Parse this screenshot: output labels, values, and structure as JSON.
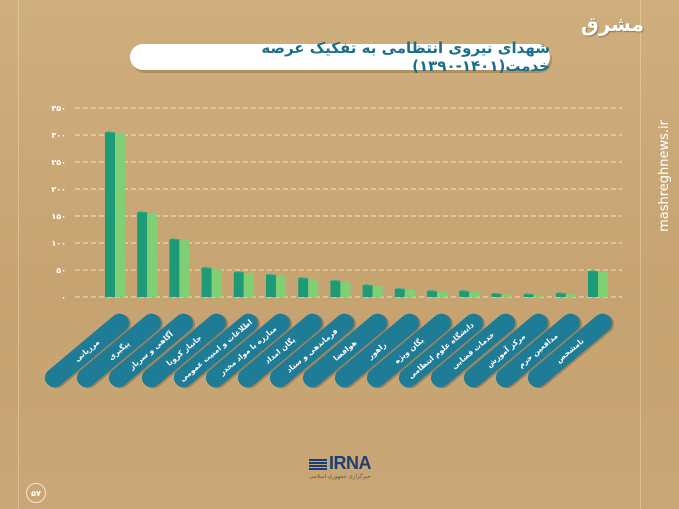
{
  "header": {
    "title": "شهدای نیروی انتظامی به تفکیک عرصه خدمت(۱۴۰۱-۱۳۹۰)"
  },
  "branding": {
    "logo": "مشرق",
    "site": "mashreghnews.ir",
    "agency": "IRNA",
    "agency_sub": "خبرگزاری جمهوری اسلامی"
  },
  "page_number": "۵۷",
  "colors": {
    "background": "#c8a777",
    "bar_dark": "#1f9a78",
    "bar_light": "#7fcf73",
    "label_pill": "#1f7c96",
    "title": "#1c6f8a"
  },
  "chart_data": {
    "type": "bar",
    "title": "شهدای نیروی انتظامی به تفکیک عرصه خدمت(۱۴۰۱-۱۳۹۰)",
    "categories": [
      "مرزبانی",
      "پیگیری",
      "آگاهی و سرباز",
      "جانباز کرونا",
      "اطلاعات و امنیت عمومی",
      "مبارزه با مواد مخدر",
      "یگان امداد",
      "فرماندهی و ستاد",
      "هوافضا",
      "راهور",
      "یگان ویژه",
      "دانشگاه علوم انتظامی",
      "خدمات قضایی",
      "مرکز آموزش",
      "مدافعین حرم",
      "نامشخص"
    ],
    "values": [
      305,
      157,
      107,
      54,
      46,
      41,
      35,
      30,
      22,
      15,
      11,
      11,
      6,
      5,
      7,
      48
    ],
    "ylim": [
      0,
      350
    ],
    "yticks": [
      0,
      50,
      100,
      150,
      200,
      250,
      300,
      350
    ],
    "ytick_labels": [
      "۰",
      "۵۰",
      "۱۰۰",
      "۱۵۰",
      "۲۰۰",
      "۲۵۰",
      "۳۰۰",
      "۳۵۰"
    ],
    "grid": true,
    "xlabel": "",
    "ylabel": ""
  }
}
